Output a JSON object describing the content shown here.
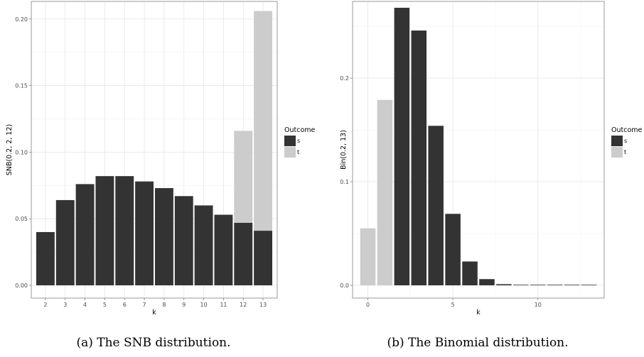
{
  "charts": [
    {
      "caption": "(a) The SNB distribution.",
      "chart_data": {
        "type": "bar",
        "stacked": true,
        "xlabel": "k",
        "ylabel": "SNB(0.2, 2, 12)",
        "legend_title": "Outcome",
        "legend_placement": "right",
        "grid": true,
        "categories": [
          "2",
          "3",
          "4",
          "5",
          "6",
          "7",
          "8",
          "9",
          "10",
          "11",
          "12",
          "13"
        ],
        "series": [
          {
            "name": "s",
            "color": "#333333",
            "values": [
              0.04,
              0.064,
              0.076,
              0.082,
              0.082,
              0.078,
              0.073,
              0.067,
              0.06,
              0.053,
              0.047,
              0.041
            ]
          },
          {
            "name": "t",
            "color": "#cccccc",
            "values": [
              0,
              0,
              0,
              0,
              0,
              0,
              0,
              0,
              0,
              0,
              0.069,
              0.165
            ]
          }
        ],
        "ylim": [
          0,
          0.21
        ],
        "yticks": [
          "0.00",
          "0.05",
          "0.10",
          "0.15",
          "0.20"
        ],
        "ytick_values": [
          0,
          0.05,
          0.1,
          0.15,
          0.2
        ]
      }
    },
    {
      "caption": "(b) The Binomial distribution.",
      "chart_data": {
        "type": "bar",
        "xlabel": "k",
        "ylabel": "Bin(0.2, 13)",
        "legend_title": "Outcome",
        "legend_placement": "right",
        "grid": true,
        "categories": [
          "0",
          "1",
          "2",
          "3",
          "4",
          "5",
          "6",
          "7",
          "8",
          "9",
          "10",
          "11",
          "12",
          "13"
        ],
        "values": [
          0.055,
          0.179,
          0.268,
          0.246,
          0.154,
          0.069,
          0.023,
          0.006,
          0.0011,
          0.0002,
          2e-05,
          2e-06,
          1e-07,
          1e-07
        ],
        "outcomes": [
          "t",
          "t",
          "s",
          "s",
          "s",
          "s",
          "s",
          "s",
          "s",
          "s",
          "s",
          "s",
          "s",
          "s"
        ],
        "series": [
          {
            "name": "s",
            "color": "#333333"
          },
          {
            "name": "t",
            "color": "#cccccc"
          }
        ],
        "ylim": [
          0,
          0.27
        ],
        "xticks": [
          "0",
          "5",
          "10"
        ],
        "xtick_values": [
          0,
          5,
          10
        ],
        "yticks": [
          "0.0",
          "0.1",
          "0.2"
        ],
        "ytick_values": [
          0,
          0.1,
          0.2
        ]
      }
    }
  ]
}
